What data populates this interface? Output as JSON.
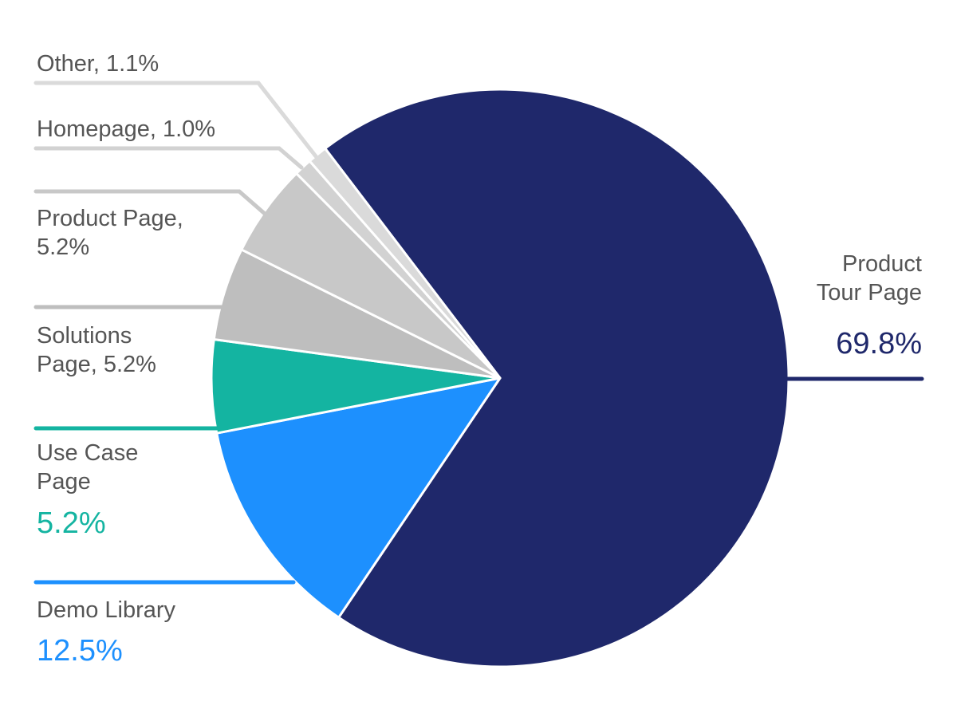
{
  "chart_data": {
    "type": "pie",
    "title": "",
    "slices": [
      {
        "label": "Product Tour Page",
        "value": 69.8,
        "color": "#1f286b"
      },
      {
        "label": "Demo Library",
        "value": 12.5,
        "color": "#1d90fe"
      },
      {
        "label": "Use Case Page",
        "value": 5.2,
        "color": "#14b4a1"
      },
      {
        "label": "Solutions Page",
        "value": 5.2,
        "color": "#bebebe"
      },
      {
        "label": "Product Page",
        "value": 5.2,
        "color": "#c8c8c8"
      },
      {
        "label": "Homepage",
        "value": 1.0,
        "color": "#d2d2d2"
      },
      {
        "label": "Other",
        "value": 1.1,
        "color": "#dadada"
      }
    ],
    "start_angle_deg": 232.7,
    "direction": "clockwise"
  },
  "labels": {
    "other": "Other, 1.1%",
    "homepage": "Homepage, 1.0%",
    "product_page_1": "Product Page,",
    "product_page_2": "5.2%",
    "solutions_1": "Solutions",
    "solutions_2": "Page, 5.2%",
    "use_case_1": "Use Case",
    "use_case_2": "Page",
    "use_case_value": "5.2%",
    "demo_library": "Demo Library",
    "demo_library_value": "12.5%",
    "tour_1": "Product",
    "tour_2": "Tour Page",
    "tour_value": "69.8%"
  }
}
